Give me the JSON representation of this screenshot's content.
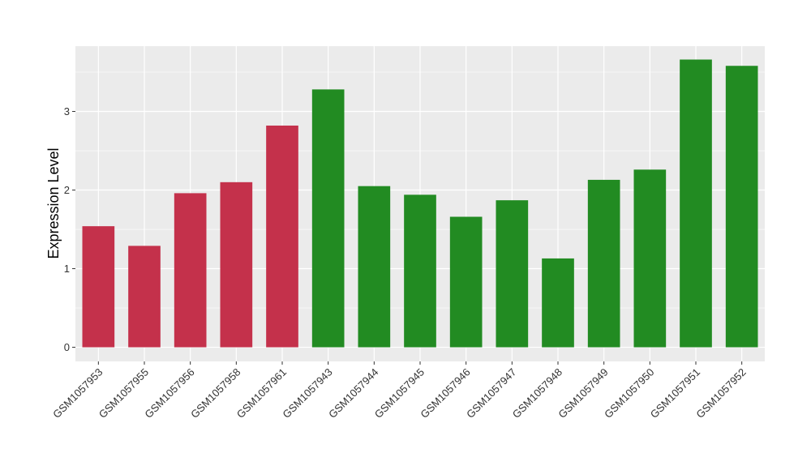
{
  "chart_data": {
    "type": "bar",
    "title": "",
    "xlabel": "",
    "ylabel": "Expression Level",
    "ylim": [
      -0.18,
      3.83
    ],
    "yticks": [
      0,
      1,
      2,
      3
    ],
    "ytick_labels": [
      "0",
      "1",
      "2",
      "3"
    ],
    "grid": true,
    "legend": "none",
    "categories": [
      "GSM1057953",
      "GSM1057955",
      "GSM1057956",
      "GSM1057958",
      "GSM1057961",
      "GSM1057943",
      "GSM1057944",
      "GSM1057945",
      "GSM1057946",
      "GSM1057947",
      "GSM1057948",
      "GSM1057949",
      "GSM1057950",
      "GSM1057951",
      "GSM1057952"
    ],
    "values": [
      1.54,
      1.29,
      1.96,
      2.1,
      2.82,
      3.28,
      2.05,
      1.94,
      1.66,
      1.87,
      1.13,
      2.13,
      2.26,
      3.66,
      3.58
    ],
    "bar_colors": [
      "#c4314b",
      "#c4314b",
      "#c4314b",
      "#c4314b",
      "#c4314b",
      "#228b22",
      "#228b22",
      "#228b22",
      "#228b22",
      "#228b22",
      "#228b22",
      "#228b22",
      "#228b22",
      "#228b22",
      "#228b22"
    ],
    "panel_background": "#ebebeb",
    "grid_color": "#ffffff"
  }
}
